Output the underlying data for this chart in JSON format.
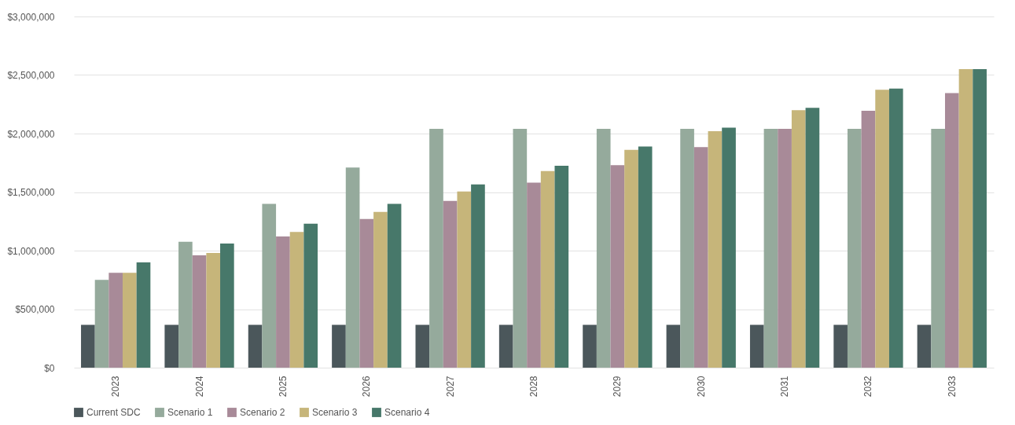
{
  "chart_data": {
    "type": "bar",
    "categories": [
      "2023",
      "2024",
      "2025",
      "2026",
      "2027",
      "2028",
      "2029",
      "2030",
      "2031",
      "2032",
      "2033"
    ],
    "series": [
      {
        "name": "Current SDC",
        "color": "#4b575b",
        "values": [
          365000,
          365000,
          365000,
          365000,
          365000,
          365000,
          365000,
          365000,
          365000,
          365000,
          365000
        ]
      },
      {
        "name": "Scenario 1",
        "color": "#95aa9c",
        "values": [
          750000,
          1075000,
          1400000,
          1710000,
          2040000,
          2040000,
          2040000,
          2040000,
          2040000,
          2040000,
          2040000
        ]
      },
      {
        "name": "Scenario 2",
        "color": "#a88a98",
        "values": [
          810000,
          960000,
          1120000,
          1270000,
          1425000,
          1580000,
          1730000,
          1885000,
          2040000,
          2195000,
          2345000
        ]
      },
      {
        "name": "Scenario 3",
        "color": "#c6b57a",
        "values": [
          810000,
          980000,
          1160000,
          1330000,
          1505000,
          1680000,
          1860000,
          2020000,
          2200000,
          2375000,
          2550000
        ]
      },
      {
        "name": "Scenario 4",
        "color": "#47786a",
        "values": [
          900000,
          1060000,
          1230000,
          1400000,
          1565000,
          1725000,
          1890000,
          2050000,
          2220000,
          2385000,
          2550000
        ]
      }
    ],
    "ylim": [
      0,
      3000000
    ],
    "yticks": [
      {
        "value": 0,
        "label": "$0"
      },
      {
        "value": 500000,
        "label": "$500,000"
      },
      {
        "value": 1000000,
        "label": "$1,000,000"
      },
      {
        "value": 1500000,
        "label": "$1,500,000"
      },
      {
        "value": 2000000,
        "label": "$2,000,000"
      },
      {
        "value": 2500000,
        "label": "$2,500,000"
      },
      {
        "value": 3000000,
        "label": "$3,000,000"
      }
    ],
    "grid": "y",
    "legend": "bottom"
  }
}
